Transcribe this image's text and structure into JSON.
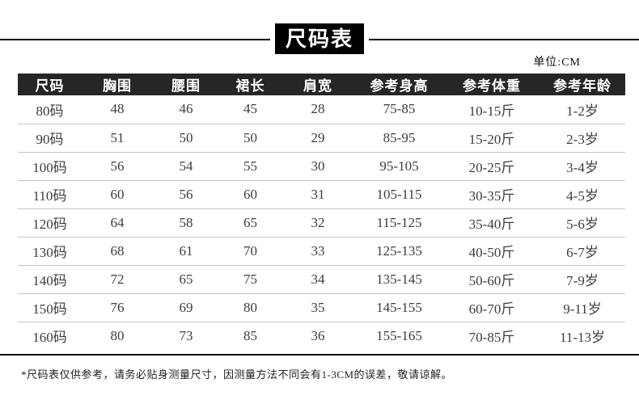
{
  "header": {
    "title": "尺码表",
    "unit": "单位:CM"
  },
  "table": {
    "columns": [
      "尺码",
      "胸围",
      "腰围",
      "裙长",
      "肩宽",
      "参考身高",
      "参考体重",
      "参考年龄"
    ],
    "rows": [
      [
        "80码",
        "48",
        "46",
        "45",
        "28",
        "75-85",
        "10-15斤",
        "1-2岁"
      ],
      [
        "90码",
        "51",
        "50",
        "50",
        "29",
        "85-95",
        "15-20斤",
        "2-3岁"
      ],
      [
        "100码",
        "56",
        "54",
        "55",
        "30",
        "95-105",
        "20-25斤",
        "3-4岁"
      ],
      [
        "110码",
        "60",
        "56",
        "60",
        "31",
        "105-115",
        "30-35斤",
        "4-5岁"
      ],
      [
        "120码",
        "64",
        "58",
        "65",
        "32",
        "115-125",
        "35-40斤",
        "5-6岁"
      ],
      [
        "130码",
        "68",
        "61",
        "70",
        "33",
        "125-135",
        "40-50斤",
        "6-7岁"
      ],
      [
        "140码",
        "72",
        "65",
        "75",
        "34",
        "135-145",
        "50-60斤",
        "7-9岁"
      ],
      [
        "150码",
        "76",
        "69",
        "80",
        "35",
        "145-155",
        "60-70斤",
        "9-11岁"
      ],
      [
        "160码",
        "80",
        "73",
        "85",
        "36",
        "155-165",
        "70-85斤",
        "11-13岁"
      ]
    ]
  },
  "footnote": "*尺码表仅供参考，请务必贴身测量尺寸，因测量方法不同会有1-3CM的误差，敬请谅解。",
  "colors": {
    "header_bg": "#262626",
    "header_text": "#ffffff",
    "body_text": "#3d3d3d",
    "separator": "#c6c6c6",
    "line": "#000000",
    "page_bg": "#ffffff"
  }
}
